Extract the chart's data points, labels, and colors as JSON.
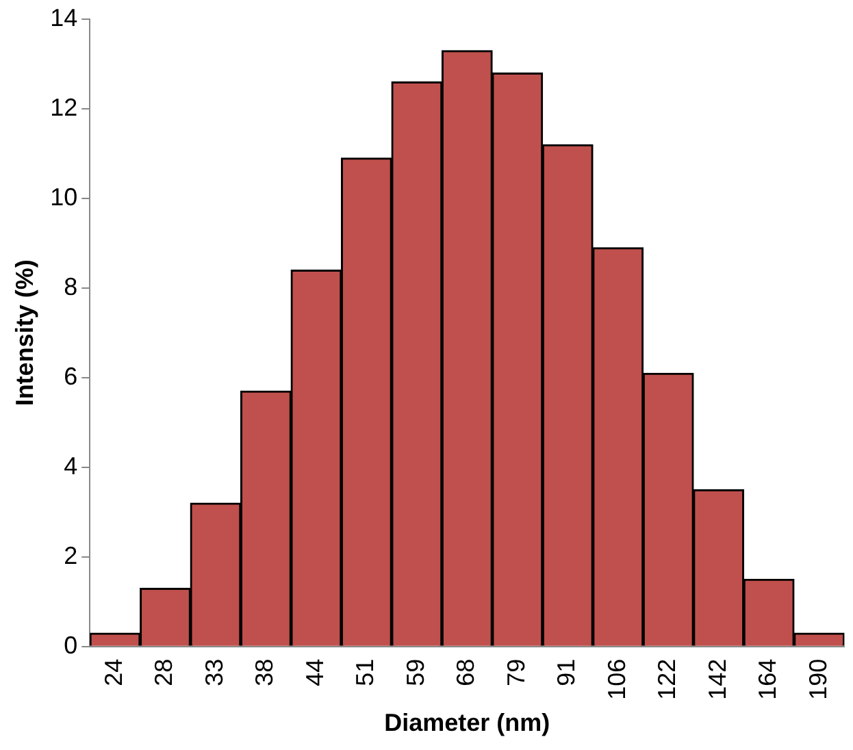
{
  "chart_data": {
    "type": "bar",
    "xlabel": "Diameter (nm)",
    "ylabel": "Intensity (%)",
    "categories": [
      "24",
      "28",
      "33",
      "38",
      "44",
      "51",
      "59",
      "68",
      "79",
      "91",
      "106",
      "122",
      "142",
      "164",
      "190"
    ],
    "values": [
      0.3,
      1.3,
      3.2,
      5.7,
      8.4,
      10.9,
      12.6,
      13.3,
      12.8,
      11.2,
      8.9,
      6.1,
      3.5,
      1.5,
      0.3
    ],
    "color": "#c0504d",
    "ylim": [
      0,
      14
    ],
    "yticks": [
      0,
      2,
      4,
      6,
      8,
      10,
      12,
      14
    ],
    "grid": false,
    "legend": false
  }
}
